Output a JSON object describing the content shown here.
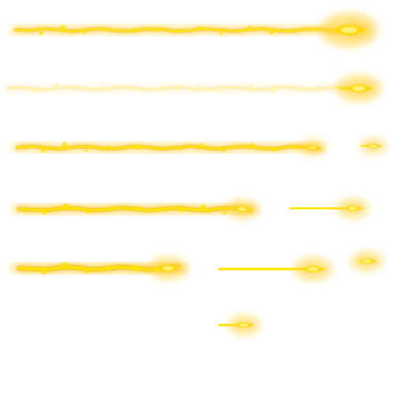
{
  "sprite_sheet": {
    "background": "#ffffff",
    "colors": {
      "glow": "#ffd23a",
      "core": "#ffe400",
      "hot": "#fff07a",
      "edge": "#f3b400"
    },
    "frames": [
      {
        "name": "trail-frame-1"
      },
      {
        "name": "trail-frame-2"
      },
      {
        "name": "trail-frame-3"
      },
      {
        "name": "trail-frame-4"
      },
      {
        "name": "trail-frame-5"
      },
      {
        "name": "trail-frame-6"
      },
      {
        "name": "trail-frame-7"
      },
      {
        "name": "trail-frame-8"
      },
      {
        "name": "trail-frame-9"
      },
      {
        "name": "trail-frame-10"
      },
      {
        "name": "trail-frame-11"
      },
      {
        "name": "trail-frame-12"
      }
    ]
  }
}
